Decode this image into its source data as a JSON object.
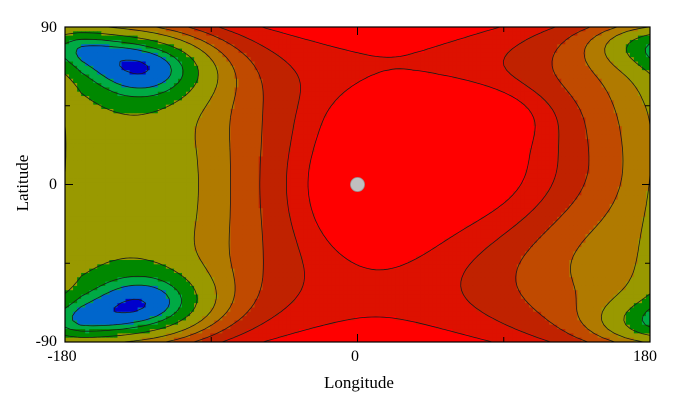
{
  "chart_data": {
    "type": "heatmap",
    "subtype": "filled-contour-map",
    "xlabel": "Longitude",
    "ylabel": "Latitude",
    "xlim": [
      -180,
      180
    ],
    "ylim": [
      -90,
      90
    ],
    "xticks": [
      -180,
      0,
      180
    ],
    "yticks": [
      -90,
      0,
      90
    ],
    "xtick_minor": [
      -90,
      90
    ],
    "ytick_minor": [
      -45,
      45
    ],
    "grid": false,
    "legend": "none",
    "levels": [
      {
        "level": 0,
        "color": "#0000cd"
      },
      {
        "level": 1,
        "color": "#3333cc"
      },
      {
        "level": 2,
        "color": "#8080cc"
      },
      {
        "level": 3,
        "color": "#c8c8c8"
      },
      {
        "level": -1,
        "color": "#0066cc"
      },
      {
        "level": -2,
        "color": "#00aa44"
      },
      {
        "level": -3,
        "color": "#008800"
      },
      {
        "level": -4,
        "color": "#999900"
      },
      {
        "level": -5,
        "color": "#b07a00"
      },
      {
        "level": -6,
        "color": "#c04a00"
      },
      {
        "level": -7,
        "color": "#c02200"
      },
      {
        "level": -8,
        "color": "#dd1100"
      },
      {
        "level": -9,
        "color": "#ff0000"
      }
    ],
    "sources": [
      {
        "lon": 10,
        "lat": 0,
        "amp": 5.2,
        "sx": 95,
        "sy": 60
      },
      {
        "lon": 10,
        "lat": 0,
        "amp": 1.5,
        "sx": 25,
        "sy": 25
      },
      {
        "lon": 60,
        "lat": 40,
        "amp": 1.3,
        "sx": 40,
        "sy": 12
      },
      {
        "lon": 100,
        "lat": 10,
        "amp": 1.9,
        "sx": 48,
        "sy": 32
      },
      {
        "lon": 170,
        "lat": 0,
        "amp": 0.3,
        "sx": 25,
        "sy": 35
      },
      {
        "lon": -130,
        "lat": 68,
        "amp": -2.6,
        "sx": 32,
        "sy": 15
      },
      {
        "lon": -130,
        "lat": -70,
        "amp": -2.6,
        "sx": 32,
        "sy": 15
      },
      {
        "lon": -180,
        "lat": 0,
        "amp": 1.0,
        "sx": 35,
        "sy": 60
      },
      {
        "lon": 180,
        "lat": 80,
        "amp": -1.4,
        "sx": 25,
        "sy": 10
      },
      {
        "lon": 180,
        "lat": -80,
        "amp": -1.4,
        "sx": 25,
        "sy": 10
      },
      {
        "lon": -180,
        "lat": 88,
        "amp": -0.8,
        "sx": 45,
        "sy": 15
      },
      {
        "lon": -180,
        "lat": -88,
        "amp": -0.8,
        "sx": 45,
        "sy": 15
      }
    ],
    "base_lat_gradient": 4.0,
    "marker": {
      "lon": 0,
      "lat": 0,
      "color": "#c0c0c0"
    }
  }
}
